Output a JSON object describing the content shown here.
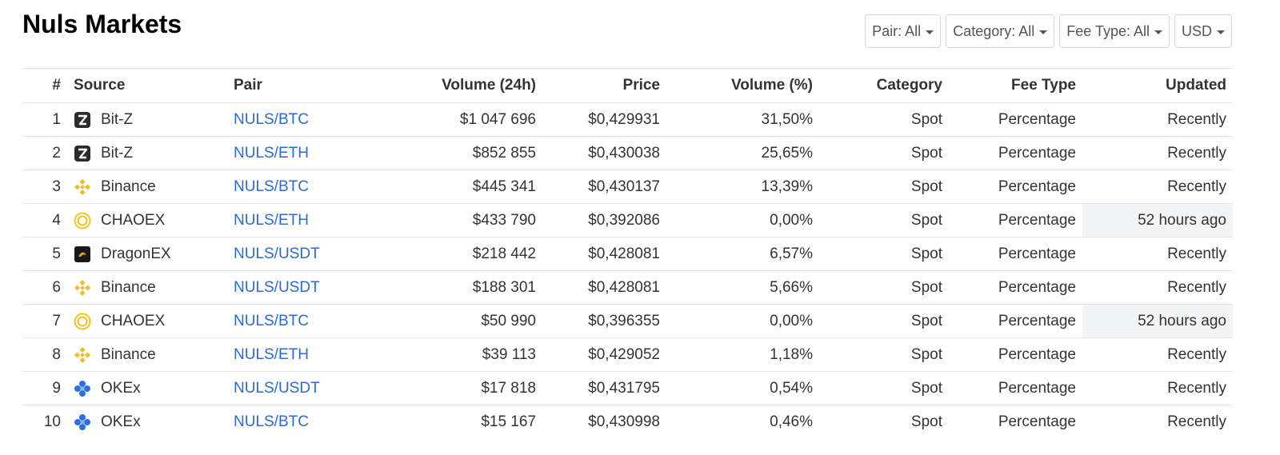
{
  "title": "Nuls Markets",
  "filters": [
    {
      "label": "Pair: All"
    },
    {
      "label": "Category: All"
    },
    {
      "label": "Fee Type: All"
    },
    {
      "label": "USD"
    }
  ],
  "table": {
    "headers": {
      "num": "#",
      "source": "Source",
      "pair": "Pair",
      "volume": "Volume (24h)",
      "price": "Price",
      "volume_pct": "Volume (%)",
      "category": "Category",
      "fee_type": "Fee Type",
      "updated": "Updated"
    },
    "rows": [
      {
        "num": "1",
        "source": "Bit-Z",
        "icon": "bitz-icon",
        "pair": "NULS/BTC",
        "volume": "$1 047 696",
        "price": "$0,429931",
        "volume_pct": "31,50%",
        "category": "Spot",
        "fee_type": "Percentage",
        "updated": "Recently",
        "stale": false
      },
      {
        "num": "2",
        "source": "Bit-Z",
        "icon": "bitz-icon",
        "pair": "NULS/ETH",
        "volume": "$852 855",
        "price": "$0,430038",
        "volume_pct": "25,65%",
        "category": "Spot",
        "fee_type": "Percentage",
        "updated": "Recently",
        "stale": false
      },
      {
        "num": "3",
        "source": "Binance",
        "icon": "binance-icon",
        "pair": "NULS/BTC",
        "volume": "$445 341",
        "price": "$0,430137",
        "volume_pct": "13,39%",
        "category": "Spot",
        "fee_type": "Percentage",
        "updated": "Recently",
        "stale": false
      },
      {
        "num": "4",
        "source": "CHAOEX",
        "icon": "chaoex-icon",
        "pair": "NULS/ETH",
        "volume": "$433 790",
        "price": "$0,392086",
        "volume_pct": "0,00%",
        "category": "Spot",
        "fee_type": "Percentage",
        "updated": "52 hours ago",
        "stale": true
      },
      {
        "num": "5",
        "source": "DragonEX",
        "icon": "dragonex-icon",
        "pair": "NULS/USDT",
        "volume": "$218 442",
        "price": "$0,428081",
        "volume_pct": "6,57%",
        "category": "Spot",
        "fee_type": "Percentage",
        "updated": "Recently",
        "stale": false
      },
      {
        "num": "6",
        "source": "Binance",
        "icon": "binance-icon",
        "pair": "NULS/USDT",
        "volume": "$188 301",
        "price": "$0,428081",
        "volume_pct": "5,66%",
        "category": "Spot",
        "fee_type": "Percentage",
        "updated": "Recently",
        "stale": false
      },
      {
        "num": "7",
        "source": "CHAOEX",
        "icon": "chaoex-icon",
        "pair": "NULS/BTC",
        "volume": "$50 990",
        "price": "$0,396355",
        "volume_pct": "0,00%",
        "category": "Spot",
        "fee_type": "Percentage",
        "updated": "52 hours ago",
        "stale": true
      },
      {
        "num": "8",
        "source": "Binance",
        "icon": "binance-icon",
        "pair": "NULS/ETH",
        "volume": "$39 113",
        "price": "$0,429052",
        "volume_pct": "1,18%",
        "category": "Spot",
        "fee_type": "Percentage",
        "updated": "Recently",
        "stale": false
      },
      {
        "num": "9",
        "source": "OKEx",
        "icon": "okex-icon",
        "pair": "NULS/USDT",
        "volume": "$17 818",
        "price": "$0,431795",
        "volume_pct": "0,54%",
        "category": "Spot",
        "fee_type": "Percentage",
        "updated": "Recently",
        "stale": false
      },
      {
        "num": "10",
        "source": "OKEx",
        "icon": "okex-icon",
        "pair": "NULS/BTC",
        "volume": "$15 167",
        "price": "$0,430998",
        "volume_pct": "0,46%",
        "category": "Spot",
        "fee_type": "Percentage",
        "updated": "Recently",
        "stale": false
      }
    ]
  },
  "colors": {
    "link": "#2a6ad4",
    "stale_bg": "#f3f4f6",
    "binance": "#f3ba2f",
    "chaoex": "#f0c419",
    "okex": "#2d6fe0",
    "bitz": "#2b2b2b",
    "dragonex": "#1a1a1a"
  }
}
